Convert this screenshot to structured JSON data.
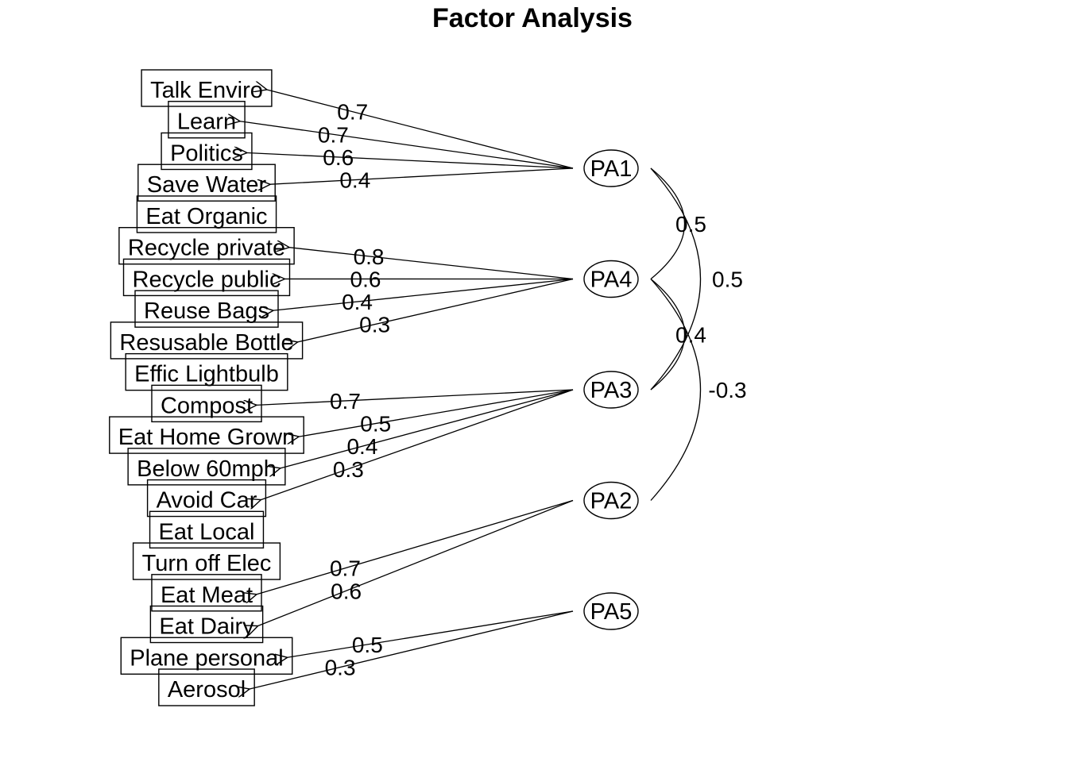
{
  "title": "Factor Analysis",
  "variables": [
    "Talk Enviro",
    "Learn",
    "Politics",
    "Save Water",
    "Eat Organic",
    "Recycle private",
    "Recycle public",
    "Reuse Bags",
    "Resusable Bottle",
    "Effic Lightbulb",
    "Compost",
    "Eat Home Grown",
    "Below 60mph",
    "Avoid Car",
    "Eat Local",
    "Turn off Elec",
    "Eat Meat",
    "Eat Dairy",
    "Plane personal",
    "Aerosol"
  ],
  "factors": [
    "PA1",
    "PA4",
    "PA3",
    "PA2",
    "PA5"
  ],
  "loadings": [
    {
      "factor": "PA1",
      "variable": "Talk Enviro",
      "label": "0.7"
    },
    {
      "factor": "PA1",
      "variable": "Learn",
      "label": "0.7"
    },
    {
      "factor": "PA1",
      "variable": "Politics",
      "label": "0.6"
    },
    {
      "factor": "PA1",
      "variable": "Save Water",
      "label": "0.4"
    },
    {
      "factor": "PA4",
      "variable": "Recycle private",
      "label": "0.8"
    },
    {
      "factor": "PA4",
      "variable": "Recycle public",
      "label": "0.6"
    },
    {
      "factor": "PA4",
      "variable": "Reuse Bags",
      "label": "0.4"
    },
    {
      "factor": "PA4",
      "variable": "Resusable Bottle",
      "label": "0.3"
    },
    {
      "factor": "PA3",
      "variable": "Compost",
      "label": "0.7"
    },
    {
      "factor": "PA3",
      "variable": "Eat Home Grown",
      "label": "0.5"
    },
    {
      "factor": "PA3",
      "variable": "Below 60mph",
      "label": "0.4"
    },
    {
      "factor": "PA3",
      "variable": "Avoid Car",
      "label": "0.3"
    },
    {
      "factor": "PA2",
      "variable": "Eat Meat",
      "label": "0.7"
    },
    {
      "factor": "PA2",
      "variable": "Eat Dairy",
      "label": "0.6"
    },
    {
      "factor": "PA5",
      "variable": "Plane personal",
      "label": "0.5"
    },
    {
      "factor": "PA5",
      "variable": "Aerosol",
      "label": "0.3"
    }
  ],
  "correlations": [
    {
      "from": "PA1",
      "to": "PA4",
      "label": "0.5"
    },
    {
      "from": "PA1",
      "to": "PA3",
      "label": "0.5"
    },
    {
      "from": "PA4",
      "to": "PA3",
      "label": "0.4"
    },
    {
      "from": "PA4",
      "to": "PA2",
      "label": "-0.3"
    }
  ]
}
